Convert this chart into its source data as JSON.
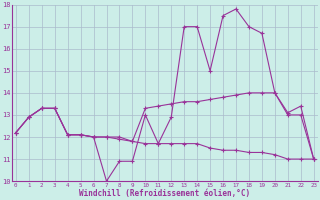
{
  "xlabel": "Windchill (Refroidissement éolien,°C)",
  "bg_color": "#cceee8",
  "line_color": "#993399",
  "grid_color": "#aabbcc",
  "xmin": 0,
  "xmax": 23,
  "ymin": 10,
  "ymax": 18,
  "series": [
    [
      12.2,
      12.9,
      13.3,
      13.3,
      12.1,
      12.1,
      12.0,
      10.0,
      10.9,
      10.9,
      13.0,
      11.7,
      12.9,
      17.0,
      17.0,
      15.0,
      17.5,
      17.8,
      17.0,
      16.7,
      14.0,
      13.1,
      13.4,
      11.0
    ],
    [
      12.2,
      12.9,
      13.3,
      13.3,
      12.1,
      12.1,
      12.0,
      12.0,
      12.0,
      11.8,
      13.3,
      13.4,
      13.5,
      13.6,
      13.6,
      13.7,
      13.8,
      13.9,
      14.0,
      14.0,
      14.0,
      13.0,
      13.0,
      11.0
    ],
    [
      12.2,
      12.9,
      13.3,
      13.3,
      12.1,
      12.1,
      12.0,
      12.0,
      11.9,
      11.8,
      11.7,
      11.7,
      11.7,
      11.7,
      11.7,
      11.5,
      11.4,
      11.4,
      11.3,
      11.3,
      11.2,
      11.0,
      11.0,
      11.0
    ]
  ]
}
